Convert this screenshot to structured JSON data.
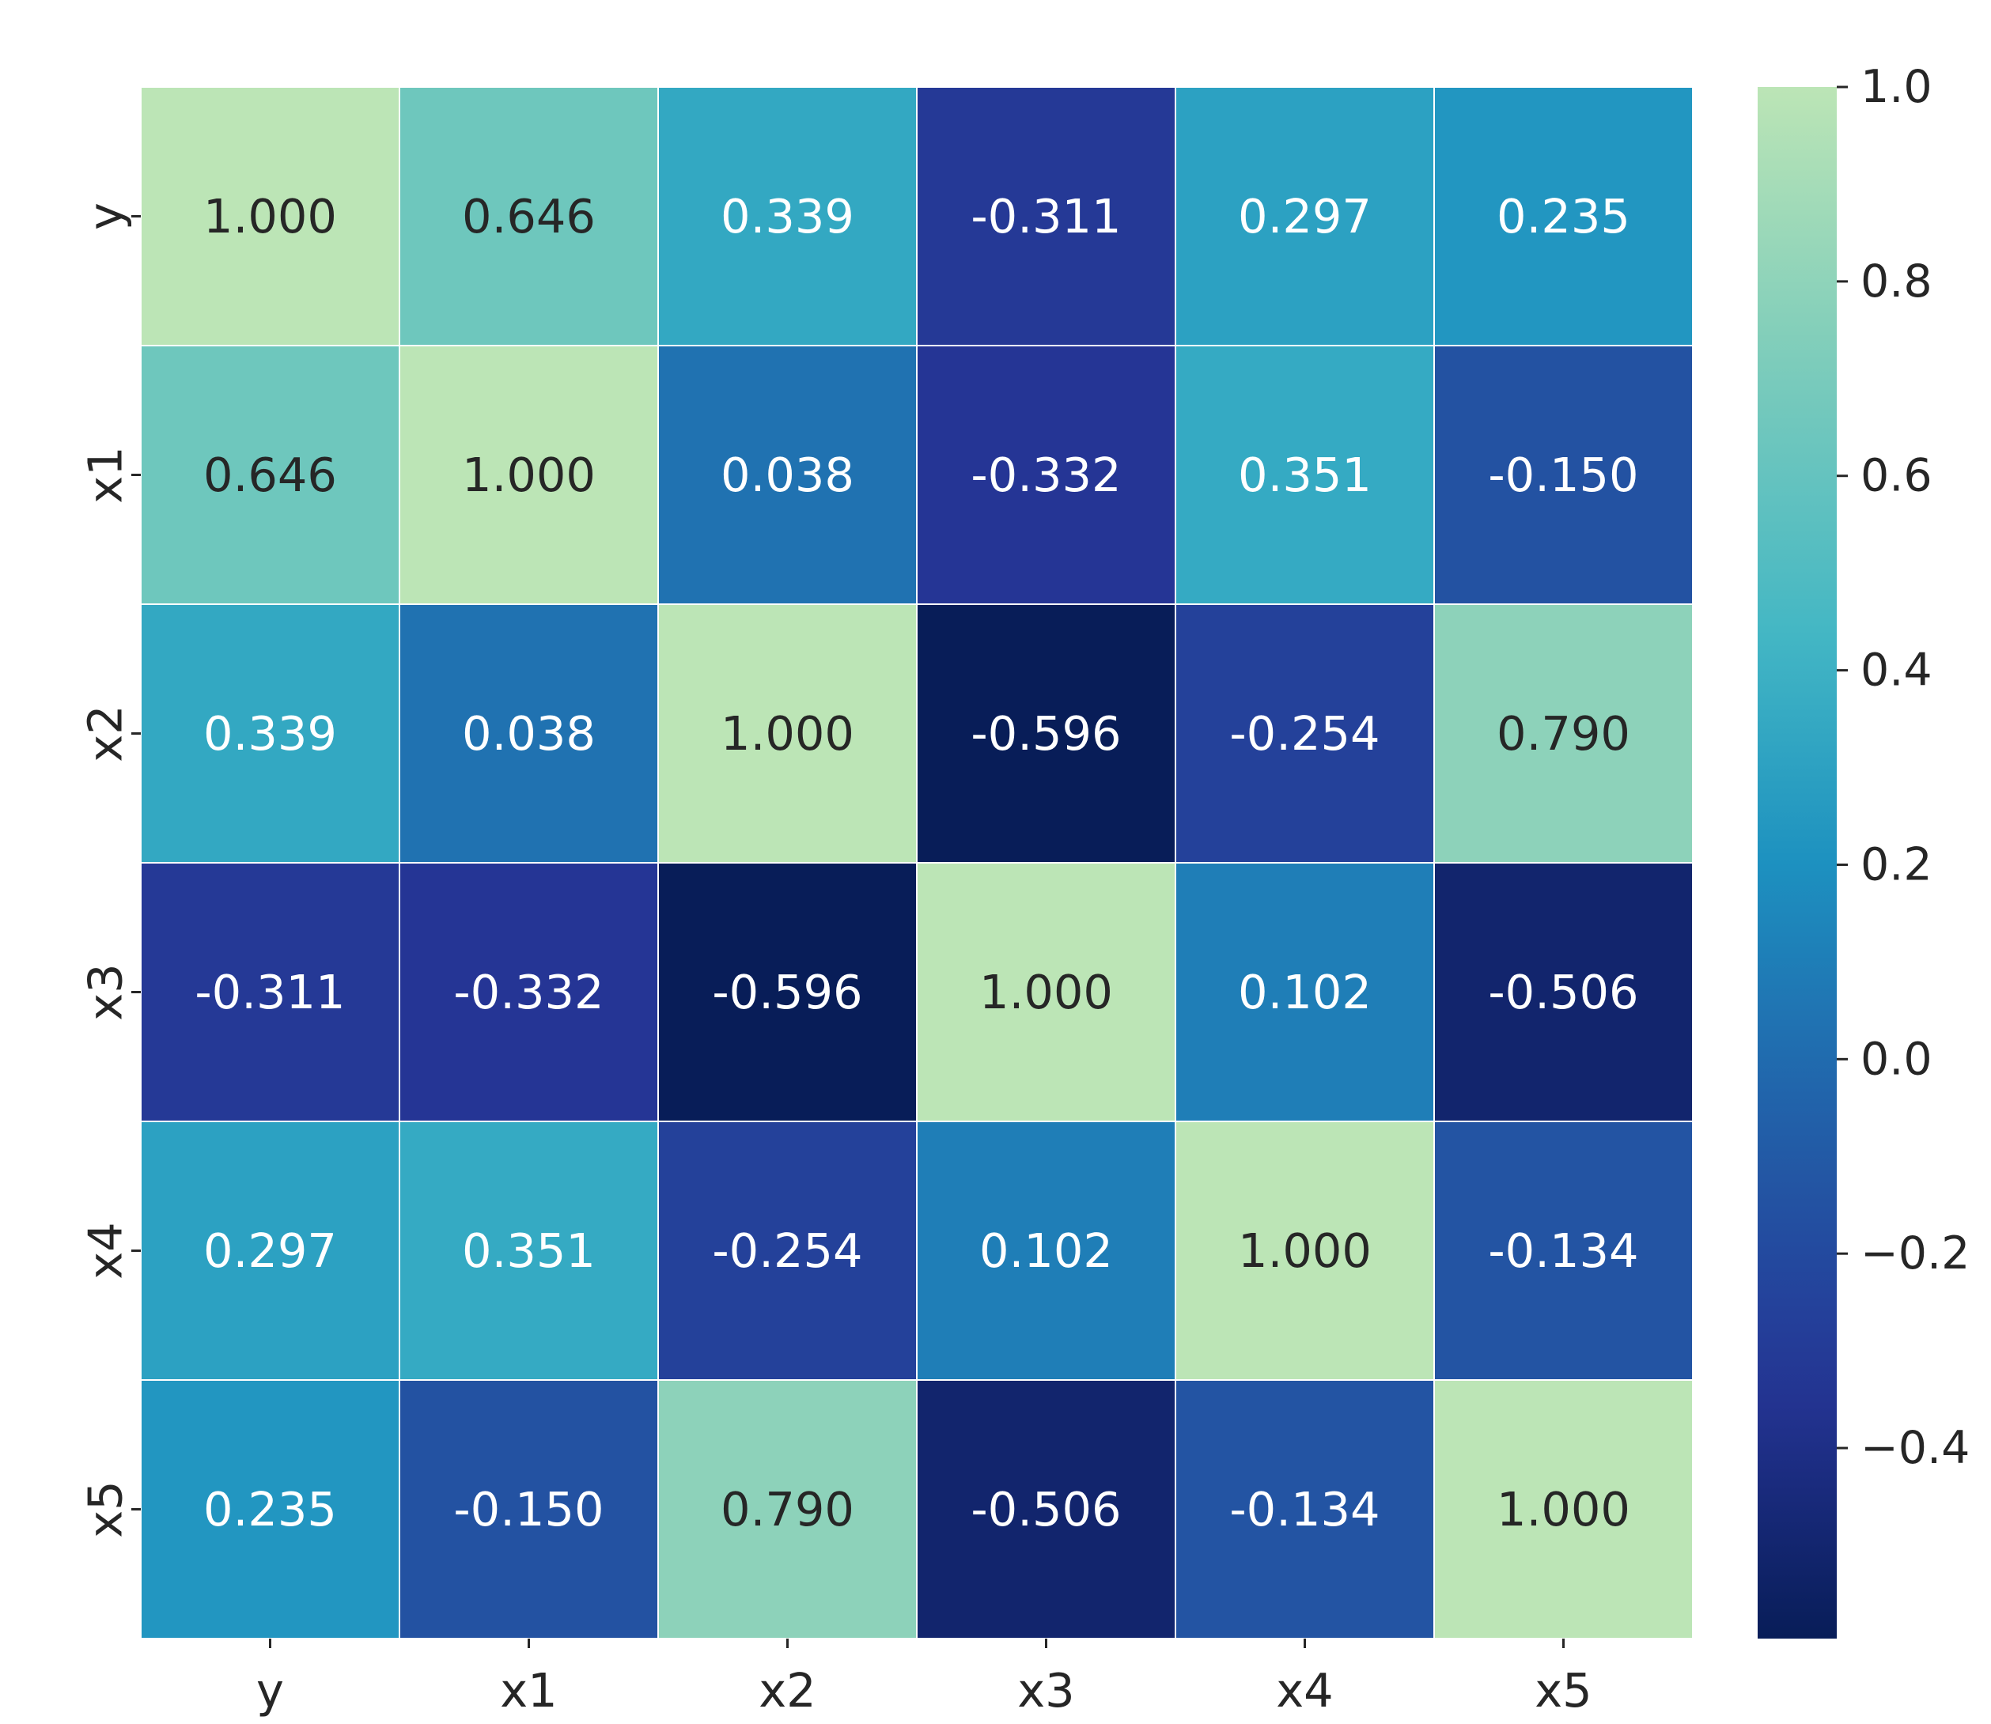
{
  "chart_data": {
    "type": "heatmap",
    "title": "",
    "xlabel": "",
    "ylabel": "",
    "x_labels": [
      "y",
      "x1",
      "x2",
      "x3",
      "x4",
      "x5"
    ],
    "y_labels": [
      "y",
      "x1",
      "x2",
      "x3",
      "x4",
      "x5"
    ],
    "matrix": [
      [
        1.0,
        0.646,
        0.339,
        -0.311,
        0.297,
        0.235
      ],
      [
        0.646,
        1.0,
        0.038,
        -0.332,
        0.351,
        -0.15
      ],
      [
        0.339,
        0.038,
        1.0,
        -0.596,
        -0.254,
        0.79
      ],
      [
        -0.311,
        -0.332,
        -0.596,
        1.0,
        0.102,
        -0.506
      ],
      [
        0.297,
        0.351,
        -0.254,
        0.102,
        1.0,
        -0.134
      ],
      [
        0.235,
        -0.15,
        0.79,
        -0.506,
        -0.134,
        1.0
      ]
    ],
    "cell_labels": [
      [
        "1.000",
        "0.646",
        "0.339",
        "-0.311",
        "0.297",
        "0.235"
      ],
      [
        "0.646",
        "1.000",
        "0.038",
        "-0.332",
        "0.351",
        "-0.150"
      ],
      [
        "0.339",
        "0.038",
        "1.000",
        "-0.596",
        "-0.254",
        "0.790"
      ],
      [
        "-0.311",
        "-0.332",
        "-0.596",
        "1.000",
        "0.102",
        "-0.506"
      ],
      [
        "0.297",
        "0.351",
        "-0.254",
        "0.102",
        "1.000",
        "-0.134"
      ],
      [
        "0.235",
        "-0.150",
        "0.790",
        "-0.506",
        "-0.134",
        "1.000"
      ]
    ],
    "colormap": "YlGnBu (truncated)",
    "color_range": [
      -0.596,
      1.0
    ],
    "colorbar": {
      "ticks": [
        1.0,
        0.8,
        0.6,
        0.4,
        0.2,
        0.0,
        -0.2,
        -0.4
      ],
      "tick_labels": [
        "1.0",
        "0.8",
        "0.6",
        "0.4",
        "0.2",
        "0.0",
        "−0.2",
        "−0.4"
      ]
    },
    "grid_line_color": "#ffffff",
    "dark_text_color": "#262626",
    "light_text_color": "#ffffff"
  }
}
